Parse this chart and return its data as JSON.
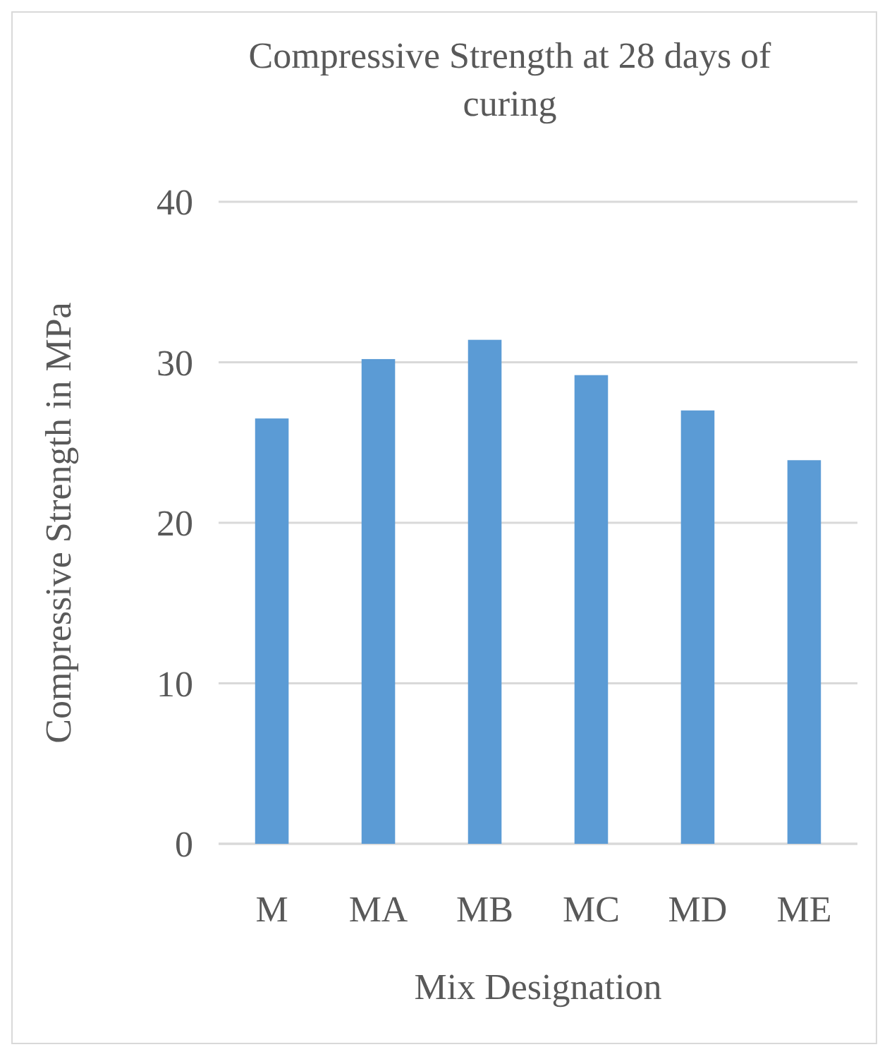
{
  "chart_data": {
    "type": "bar",
    "title": "Compressive Strength at 28 days of curing",
    "xlabel": "Mix Designation",
    "ylabel": "Compressive Strength in MPa",
    "categories": [
      "M",
      "MA",
      "MB",
      "MC",
      "MD",
      "ME"
    ],
    "values": [
      26.5,
      30.2,
      31.4,
      29.2,
      27.0,
      23.9
    ],
    "color": "#5b9bd5",
    "ylim": [
      0,
      40
    ],
    "yticks": [
      0,
      10,
      20,
      30,
      40
    ],
    "grid": "y"
  }
}
